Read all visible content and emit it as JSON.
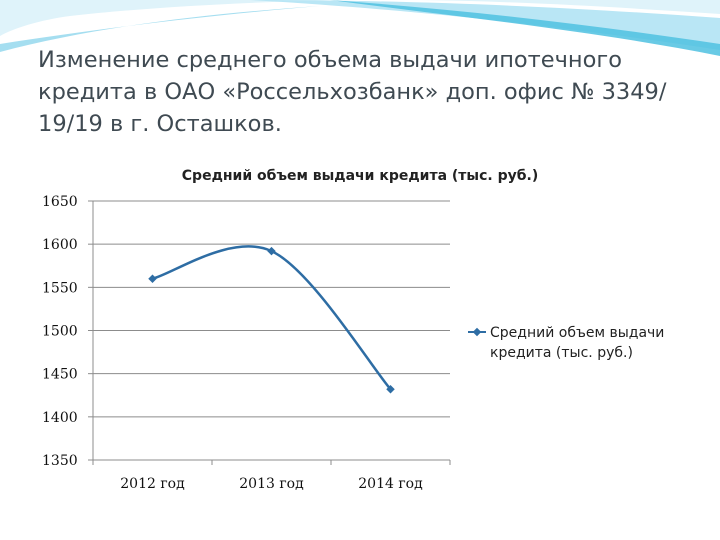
{
  "slide": {
    "title": "Изменение среднего объема выдачи ипотечного кредита в ОАО «Россельхозбанк» доп. офис № 3349/ 19/19 в г. Осташков."
  },
  "chart_data": {
    "type": "line",
    "title": "Средний объем выдачи кредита (тыс. руб.)",
    "categories": [
      "2012 год",
      "2013 год",
      "2014 год"
    ],
    "series": [
      {
        "name": "Средний объем выдачи кредита (тыс. руб.)",
        "values": [
          1560,
          1592,
          1432
        ],
        "color": "#2e6da4"
      }
    ],
    "y_ticks": [
      1350,
      1400,
      1450,
      1500,
      1550,
      1600,
      1650
    ],
    "ylim": [
      1350,
      1650
    ],
    "grid": true,
    "smooth": true,
    "legend_position": "right",
    "colors": {
      "gridline": "#8c8c8c",
      "title_text": "#3f4a52",
      "decor": "#4fc1e0"
    }
  }
}
